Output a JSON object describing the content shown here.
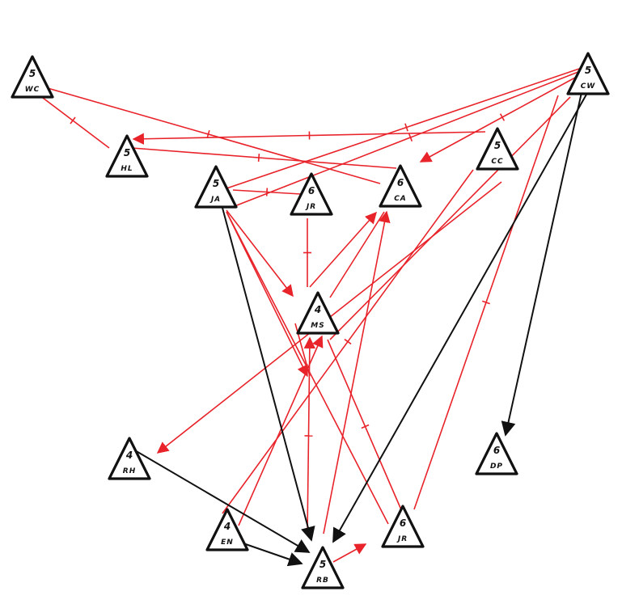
{
  "diagram": {
    "nodes": [
      {
        "id": "WC",
        "number": "5",
        "initials": "WC"
      },
      {
        "id": "HL",
        "number": "5",
        "initials": "HL"
      },
      {
        "id": "JA",
        "number": "5",
        "initials": "JA"
      },
      {
        "id": "JR1",
        "number": "6",
        "initials": "JR"
      },
      {
        "id": "CA",
        "number": "6",
        "initials": "CA"
      },
      {
        "id": "CC",
        "number": "5",
        "initials": "CC"
      },
      {
        "id": "CW",
        "number": "5",
        "initials": "CW"
      },
      {
        "id": "MS",
        "number": "4",
        "initials": "MS"
      },
      {
        "id": "RH",
        "number": "4",
        "initials": "RH"
      },
      {
        "id": "EN",
        "number": "4",
        "initials": "EN"
      },
      {
        "id": "RB",
        "number": "5",
        "initials": "RB"
      },
      {
        "id": "JR2",
        "number": "6",
        "initials": "JR"
      },
      {
        "id": "DP",
        "number": "6",
        "initials": "DP"
      }
    ],
    "colors": {
      "red": "#e8232a",
      "black": "#111111"
    }
  }
}
